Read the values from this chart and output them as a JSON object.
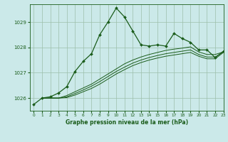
{
  "bg_color": "#cbe9e9",
  "grid_color": "#9dbfaa",
  "line_color": "#1a5c1a",
  "title": "Graphe pression niveau de la mer (hPa)",
  "xlim": [
    -0.5,
    23
  ],
  "ylim": [
    1025.5,
    1029.7
  ],
  "yticks": [
    1026,
    1027,
    1028,
    1029
  ],
  "xticks": [
    0,
    1,
    2,
    3,
    4,
    5,
    6,
    7,
    8,
    9,
    10,
    11,
    12,
    13,
    14,
    15,
    16,
    17,
    18,
    19,
    20,
    21,
    22,
    23
  ],
  "series1_x": [
    0,
    1,
    2,
    3,
    4,
    5,
    6,
    7,
    8,
    9,
    10,
    11,
    12,
    13,
    14,
    15,
    16,
    17,
    18,
    19,
    20,
    21,
    22,
    23
  ],
  "series1_y": [
    1025.75,
    1026.0,
    1026.05,
    1026.2,
    1026.45,
    1027.05,
    1027.45,
    1027.75,
    1028.5,
    1029.0,
    1029.55,
    1029.2,
    1028.65,
    1028.1,
    1028.05,
    1028.1,
    1028.05,
    1028.55,
    1028.35,
    1028.2,
    1027.9,
    1027.9,
    1027.6,
    1027.85
  ],
  "series2_x": [
    1,
    2,
    3,
    4,
    5,
    6,
    7,
    8,
    9,
    10,
    11,
    12,
    13,
    14,
    15,
    16,
    17,
    18,
    19,
    20,
    21,
    22,
    23
  ],
  "series2_y": [
    1026.0,
    1026.0,
    1026.0,
    1026.1,
    1026.25,
    1026.4,
    1026.55,
    1026.75,
    1026.95,
    1027.15,
    1027.35,
    1027.5,
    1027.62,
    1027.72,
    1027.8,
    1027.88,
    1027.93,
    1027.97,
    1028.02,
    1027.82,
    1027.72,
    1027.72,
    1027.82
  ],
  "series3_x": [
    1,
    2,
    3,
    4,
    5,
    6,
    7,
    8,
    9,
    10,
    11,
    12,
    13,
    14,
    15,
    16,
    17,
    18,
    19,
    20,
    21,
    22,
    23
  ],
  "series3_y": [
    1026.0,
    1026.0,
    1026.0,
    1026.05,
    1026.18,
    1026.32,
    1026.47,
    1026.65,
    1026.85,
    1027.05,
    1027.22,
    1027.38,
    1027.5,
    1027.6,
    1027.68,
    1027.75,
    1027.8,
    1027.85,
    1027.9,
    1027.72,
    1027.62,
    1027.62,
    1027.82
  ],
  "series4_x": [
    1,
    2,
    3,
    4,
    5,
    6,
    7,
    8,
    9,
    10,
    11,
    12,
    13,
    14,
    15,
    16,
    17,
    18,
    19,
    20,
    21,
    22,
    23
  ],
  "series4_y": [
    1026.0,
    1026.0,
    1026.0,
    1026.02,
    1026.12,
    1026.25,
    1026.38,
    1026.55,
    1026.75,
    1026.95,
    1027.12,
    1027.28,
    1027.4,
    1027.5,
    1027.58,
    1027.65,
    1027.7,
    1027.75,
    1027.8,
    1027.65,
    1027.55,
    1027.55,
    1027.8
  ]
}
